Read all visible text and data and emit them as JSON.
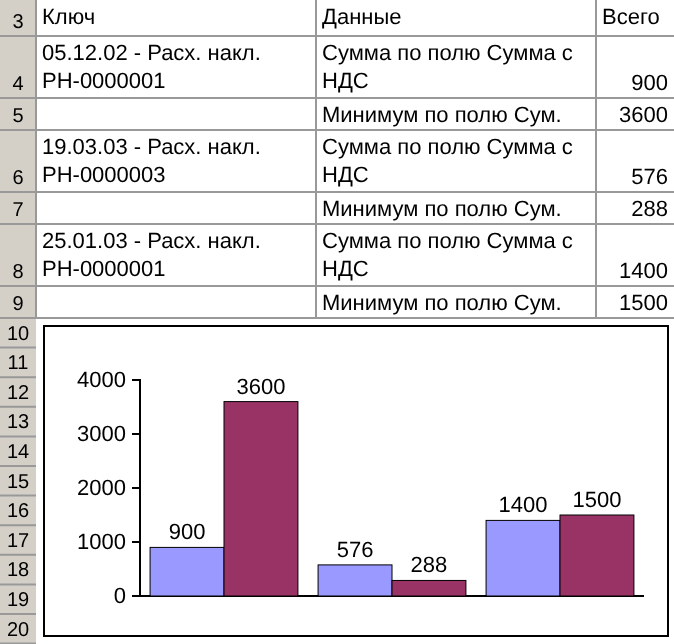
{
  "chart_data": {
    "type": "bar",
    "categories": [
      null,
      null,
      null
    ],
    "series": [
      {
        "color": "#9999ff",
        "values": [
          900,
          576,
          1400
        ]
      },
      {
        "color": "#993366",
        "values": [
          3600,
          288,
          1500
        ]
      }
    ],
    "ylim": [
      0,
      4000
    ],
    "yticks": [
      0,
      1000,
      2000,
      3000,
      4000
    ],
    "data_labels": true,
    "grid": false,
    "annotations": [
      "Ключ",
      "Данные",
      "Всего",
      "05.12.02 - Расх. накл. РН-0000001",
      "Сумма по полю Сумма с НДС",
      "900",
      "Минимум по полю Сум.",
      "3600",
      "19.03.03 - Расх. накл. РН-0000003",
      "Сумма по полю Сумма с НДС",
      "576",
      "Минимум по полю Сум.",
      "288",
      "25.01.03 - Расх. накл. РН-0000001",
      "Сумма по полю Сумма с НДС",
      "1400",
      "Минимум по полю Сум.",
      "1500",
      "3",
      "4",
      "5",
      "6",
      "7",
      "8",
      "9",
      "10",
      "11",
      "12",
      "13",
      "14",
      "15",
      "16",
      "17",
      "18",
      "19",
      "20"
    ]
  }
}
